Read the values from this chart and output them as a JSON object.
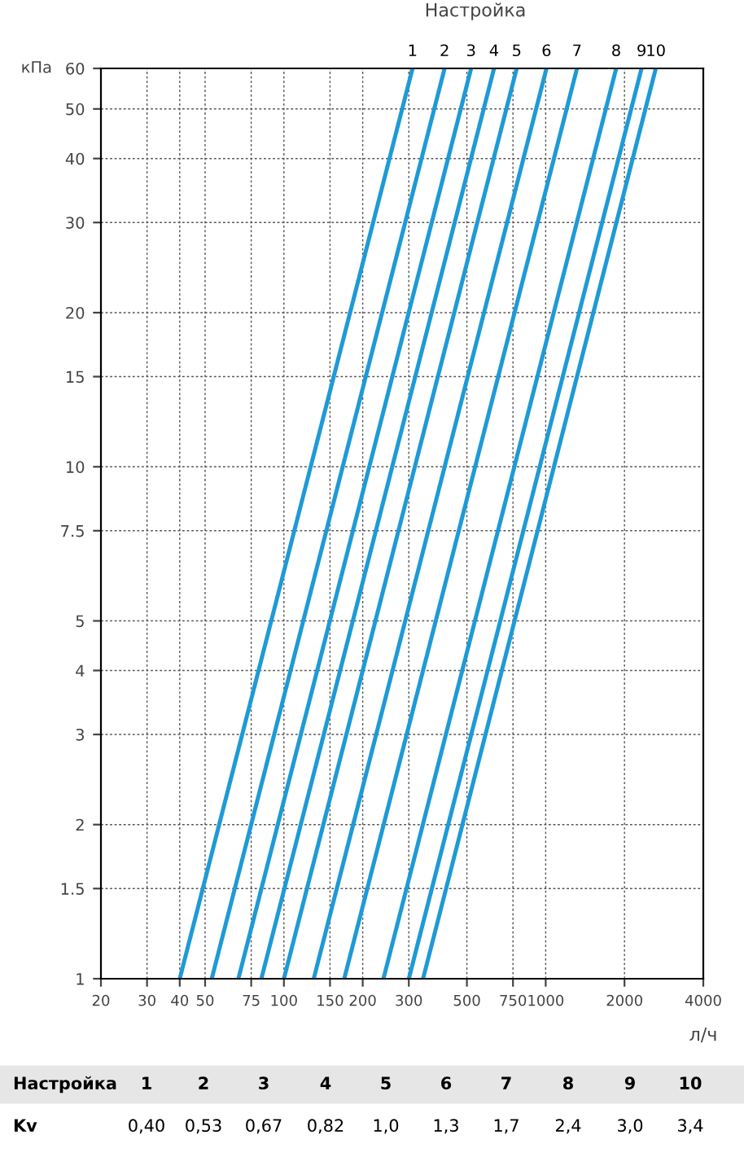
{
  "chart_data": {
    "type": "line",
    "title": "Настройка",
    "xlabel": "л/ч",
    "ylabel": "кПа",
    "log": "xy",
    "grid": true,
    "marker": "none",
    "line_style": "solid",
    "legend": false,
    "xlim": [
      20,
      4000
    ],
    "ylim": [
      1,
      60
    ],
    "xticks": [
      20,
      30,
      40,
      50,
      75,
      100,
      150,
      200,
      300,
      500,
      750,
      1000,
      2000,
      4000
    ],
    "yticks": [
      1,
      1.5,
      2,
      3,
      4,
      5,
      7.5,
      10,
      15,
      20,
      30,
      40,
      50,
      60
    ],
    "series": [
      {
        "name": "1",
        "color": "#1e9ad6",
        "x": [
          40,
          310
        ],
        "values": [
          1,
          60
        ]
      },
      {
        "name": "2",
        "color": "#1e9ad6",
        "x": [
          53,
          411
        ],
        "values": [
          1,
          60
        ]
      },
      {
        "name": "3",
        "color": "#1e9ad6",
        "x": [
          67,
          519
        ],
        "values": [
          1,
          60
        ]
      },
      {
        "name": "4",
        "color": "#1e9ad6",
        "x": [
          82,
          635
        ],
        "values": [
          1,
          60
        ]
      },
      {
        "name": "5",
        "color": "#1e9ad6",
        "x": [
          100,
          775
        ],
        "values": [
          1,
          60
        ]
      },
      {
        "name": "6",
        "color": "#1e9ad6",
        "x": [
          130,
          1007
        ],
        "values": [
          1,
          60
        ]
      },
      {
        "name": "7",
        "color": "#1e9ad6",
        "x": [
          170,
          1317
        ],
        "values": [
          1,
          60
        ]
      },
      {
        "name": "8",
        "color": "#1e9ad6",
        "x": [
          240,
          1859
        ],
        "values": [
          1,
          60
        ]
      },
      {
        "name": "9",
        "color": "#1e9ad6",
        "x": [
          300,
          2324
        ],
        "values": [
          1,
          60
        ]
      },
      {
        "name": "10",
        "color": "#1e9ad6",
        "x": [
          340,
          2634
        ],
        "values": [
          1,
          60
        ]
      }
    ],
    "annotations": [
      "Настройка",
      "Kv",
      "0,40",
      "0,53",
      "0,67",
      "0,82",
      "1,0",
      "1,3",
      "1,7",
      "2,4",
      "3,0",
      "3,4"
    ]
  }
}
